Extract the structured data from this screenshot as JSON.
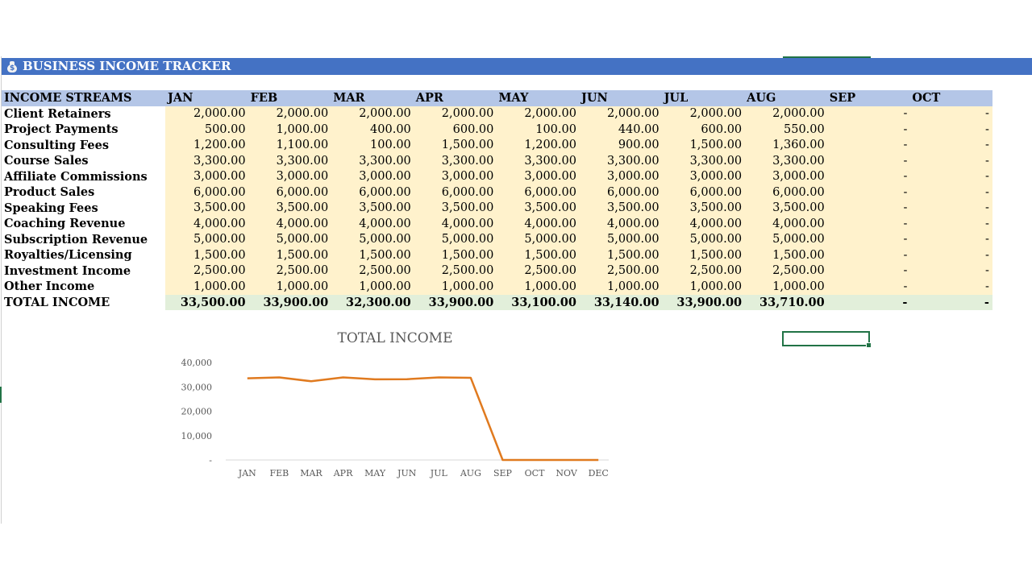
{
  "title": "BUSINESS INCOME TRACKER",
  "icon": "money-bag-icon",
  "months": [
    "JAN",
    "FEB",
    "MAR",
    "APR",
    "MAY",
    "JUN",
    "JUL",
    "AUG",
    "SEP",
    "OCT"
  ],
  "header_label": "INCOME STREAMS",
  "rows": [
    {
      "label": "Client Retainers",
      "values": [
        "2,000.00",
        "2,000.00",
        "2,000.00",
        "2,000.00",
        "2,000.00",
        "2,000.00",
        "2,000.00",
        "2,000.00",
        "-",
        "-"
      ]
    },
    {
      "label": "Project Payments",
      "values": [
        "500.00",
        "1,000.00",
        "400.00",
        "600.00",
        "100.00",
        "440.00",
        "600.00",
        "550.00",
        "-",
        "-"
      ]
    },
    {
      "label": "Consulting Fees",
      "values": [
        "1,200.00",
        "1,100.00",
        "100.00",
        "1,500.00",
        "1,200.00",
        "900.00",
        "1,500.00",
        "1,360.00",
        "-",
        "-"
      ]
    },
    {
      "label": "Course Sales",
      "values": [
        "3,300.00",
        "3,300.00",
        "3,300.00",
        "3,300.00",
        "3,300.00",
        "3,300.00",
        "3,300.00",
        "3,300.00",
        "-",
        "-"
      ]
    },
    {
      "label": "Affiliate Commissions",
      "values": [
        "3,000.00",
        "3,000.00",
        "3,000.00",
        "3,000.00",
        "3,000.00",
        "3,000.00",
        "3,000.00",
        "3,000.00",
        "-",
        "-"
      ]
    },
    {
      "label": "Product Sales",
      "values": [
        "6,000.00",
        "6,000.00",
        "6,000.00",
        "6,000.00",
        "6,000.00",
        "6,000.00",
        "6,000.00",
        "6,000.00",
        "-",
        "-"
      ]
    },
    {
      "label": "Speaking Fees",
      "values": [
        "3,500.00",
        "3,500.00",
        "3,500.00",
        "3,500.00",
        "3,500.00",
        "3,500.00",
        "3,500.00",
        "3,500.00",
        "-",
        "-"
      ]
    },
    {
      "label": "Coaching Revenue",
      "values": [
        "4,000.00",
        "4,000.00",
        "4,000.00",
        "4,000.00",
        "4,000.00",
        "4,000.00",
        "4,000.00",
        "4,000.00",
        "-",
        "-"
      ]
    },
    {
      "label": "Subscription Revenue",
      "values": [
        "5,000.00",
        "5,000.00",
        "5,000.00",
        "5,000.00",
        "5,000.00",
        "5,000.00",
        "5,000.00",
        "5,000.00",
        "-",
        "-"
      ]
    },
    {
      "label": "Royalties/Licensing",
      "values": [
        "1,500.00",
        "1,500.00",
        "1,500.00",
        "1,500.00",
        "1,500.00",
        "1,500.00",
        "1,500.00",
        "1,500.00",
        "-",
        "-"
      ]
    },
    {
      "label": "Investment Income",
      "values": [
        "2,500.00",
        "2,500.00",
        "2,500.00",
        "2,500.00",
        "2,500.00",
        "2,500.00",
        "2,500.00",
        "2,500.00",
        "-",
        "-"
      ]
    },
    {
      "label": "Other Income",
      "values": [
        "1,000.00",
        "1,000.00",
        "1,000.00",
        "1,000.00",
        "1,000.00",
        "1,000.00",
        "1,000.00",
        "1,000.00",
        "-",
        "-"
      ]
    }
  ],
  "total": {
    "label": "TOTAL INCOME",
    "values": [
      "33,500.00",
      "33,900.00",
      "32,300.00",
      "33,900.00",
      "33,100.00",
      "33,140.00",
      "33,900.00",
      "33,710.00",
      "-",
      "-"
    ]
  },
  "colors": {
    "title_bar": "#4472c4",
    "header": "#b4c6e7",
    "value_cell": "#fff2cc",
    "total_cell": "#e2efda",
    "line": "#e07a1f",
    "selection": "#217346"
  },
  "chart_data": {
    "type": "line",
    "title": "TOTAL INCOME",
    "categories": [
      "JAN",
      "FEB",
      "MAR",
      "APR",
      "MAY",
      "JUN",
      "JUL",
      "AUG",
      "SEP",
      "OCT",
      "NOV",
      "DEC"
    ],
    "values": [
      33500,
      33900,
      32300,
      33900,
      33100,
      33140,
      33900,
      33710,
      0,
      0,
      0,
      0
    ],
    "ylim": [
      0,
      40000
    ],
    "yticks": [
      0,
      10000,
      20000,
      30000,
      40000
    ],
    "ytick_labels": [
      "-",
      "10,000",
      "20,000",
      "30,000",
      "40,000"
    ],
    "grid": false,
    "legend": "none"
  }
}
